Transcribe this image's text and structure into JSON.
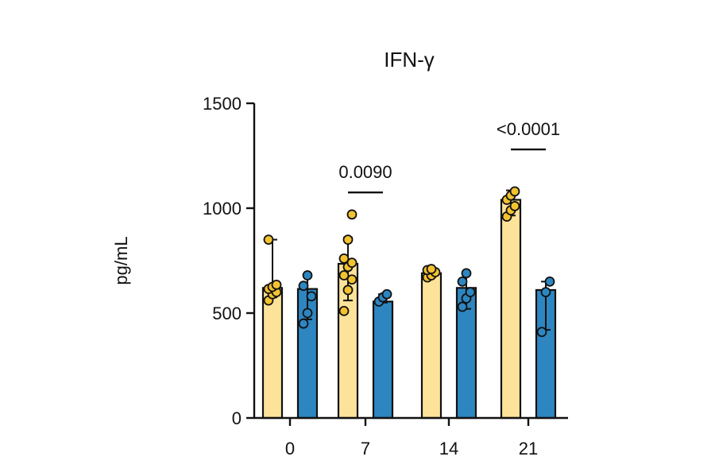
{
  "chart_data": {
    "type": "bar",
    "title": "IFN-γ",
    "xlabel": "",
    "ylabel": "pg/mL",
    "ylim": [
      0,
      1500
    ],
    "yticks": [
      0,
      500,
      1000,
      1500
    ],
    "categories": [
      "0",
      "7",
      "14",
      "21"
    ],
    "series": [
      {
        "color": "#FDE29A",
        "point_color": "#F2C230",
        "values": [
          620,
          735,
          690,
          1040
        ],
        "error_low": [
          575,
          560,
          675,
          965
        ],
        "error_high": [
          850,
          860,
          710,
          1085
        ],
        "points": [
          [
            560,
            590,
            600,
            615,
            625,
            635,
            850
          ],
          [
            510,
            610,
            660,
            680,
            720,
            740,
            760,
            850,
            970
          ],
          [
            670,
            680,
            695,
            705,
            710
          ],
          [
            960,
            990,
            1010,
            1040,
            1060,
            1080
          ]
        ]
      },
      {
        "color": "#2E86C1",
        "point_color": "#2E86C1",
        "values": [
          615,
          555,
          620,
          610
        ],
        "error_low": [
          470,
          550,
          520,
          420
        ],
        "error_high": [
          680,
          590,
          690,
          650
        ],
        "points": [
          [
            450,
            500,
            580,
            630,
            680
          ],
          [
            555,
            575,
            590
          ],
          [
            530,
            570,
            600,
            650,
            690
          ],
          [
            410,
            600,
            650
          ]
        ]
      }
    ],
    "annotations": [
      {
        "category_index": 1,
        "text": "0.0090",
        "y": 1075
      },
      {
        "category_index": 3,
        "text": "<0.0001",
        "y": 1280
      }
    ]
  }
}
